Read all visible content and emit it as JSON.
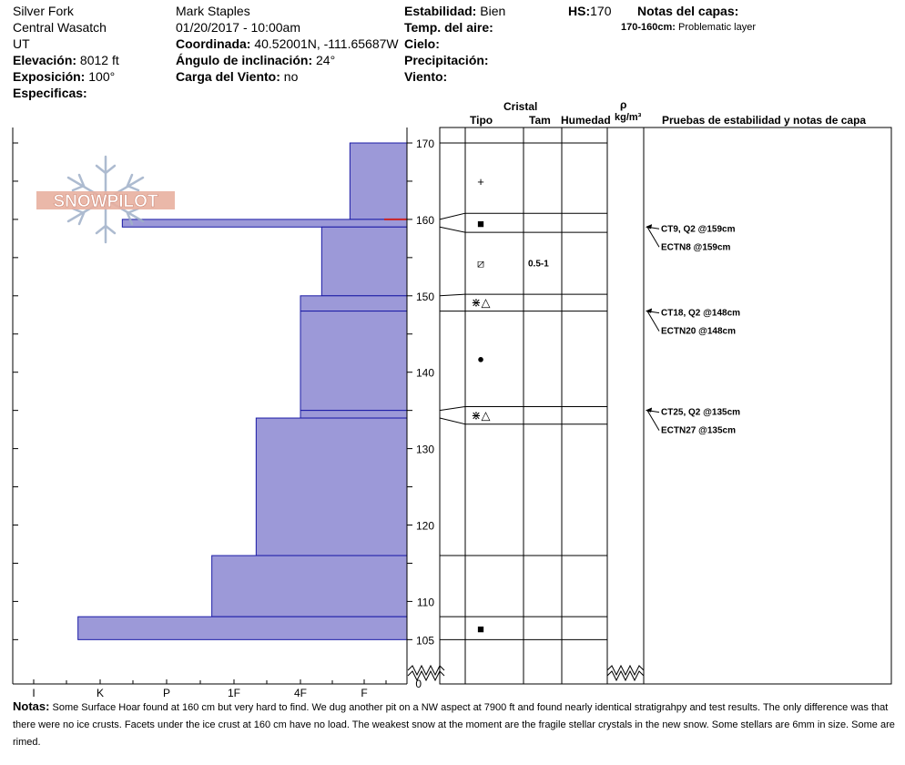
{
  "header": {
    "location": "Silver Fork",
    "range": "Central Wasatch",
    "state": "UT",
    "elevation_label": "Elevación:",
    "elevation_value": "8012 ft",
    "aspect_label": "Exposición:",
    "aspect_value": "100°",
    "specifics_label": "Especificas:",
    "observer": "Mark Staples",
    "datetime": "01/20/2017 - 10:00am",
    "coord_label": "Coordinada:",
    "coord_value": "40.52001N, -111.65687W",
    "slope_label": "Ángulo de inclinación:",
    "slope_value": "24°",
    "wind_load_label": "Carga del Viento:",
    "wind_load_value": "no",
    "stability_label": "Estabilidad:",
    "stability_value": "Bien",
    "air_temp_label": "Temp. del aire:",
    "sky_label": "Cielo:",
    "precip_label": "Precipitación:",
    "wind_label": "Viento:",
    "hs_label": "HS:",
    "hs_value": "170",
    "layer_notes_label": "Notas del capas:",
    "layer_note_range": "170-160cm:",
    "layer_note_text": "Problematic layer"
  },
  "columns": {
    "cristal": "Cristal",
    "tipo": "Tipo",
    "tam": "Tam",
    "humedad": "Humedad",
    "rho": "ρ",
    "density_unit": "kg/m³",
    "tests_header": "Pruebas de estabilidad y notas de capa"
  },
  "logo_text": "SNOWPILOT",
  "notes": {
    "label": "Notas:",
    "text": "Some Surface Hoar found at 160 cm but very hard to find. We dug another pit on a NW aspect at 7900 ft and found nearly identical stratigrahpy and test results. The only difference was that there were no ice crusts. Facets under the ice crust at 160 cm have no load. The weakest snow at the moment are the fragile stellar crystals in the new snow. Some stellars are 6mm in size. Some are rimed."
  },
  "chart_data": {
    "type": "snow-profile",
    "hardness_axis": [
      "I",
      "K",
      "P",
      "1F",
      "4F",
      "F"
    ],
    "height_ticks": [
      170,
      160,
      150,
      140,
      130,
      120,
      110,
      105,
      0
    ],
    "height_range_cm": [
      101,
      172
    ],
    "hardness_layers": [
      {
        "top": 170,
        "bottom": 160,
        "hardness": "F-"
      },
      {
        "top": 160,
        "bottom": 159,
        "hardness": "K+"
      },
      {
        "top": 159,
        "bottom": 150,
        "hardness": "4F+"
      },
      {
        "top": 150,
        "bottom": 148,
        "hardness": "4F"
      },
      {
        "top": 148,
        "bottom": 135,
        "hardness": "4F"
      },
      {
        "top": 135,
        "bottom": 134,
        "hardness": "4F"
      },
      {
        "top": 134,
        "bottom": 116,
        "hardness": "1F+"
      },
      {
        "top": 116,
        "bottom": 108,
        "hardness": "1F-"
      },
      {
        "top": 108,
        "bottom": 105,
        "hardness": "K-"
      }
    ],
    "crust_marker_height": 160,
    "layer_boundaries": [
      170,
      160.8,
      158.3,
      150.2,
      148,
      135.5,
      133.2,
      116,
      108,
      105
    ],
    "boundary_points": [
      [
        170,
        170
      ],
      [
        160,
        160.8
      ],
      [
        159,
        158.3
      ],
      [
        150,
        150.2
      ],
      [
        148,
        148
      ],
      [
        135,
        135.5
      ],
      [
        134,
        133.2
      ],
      [
        116,
        116
      ],
      [
        108,
        108
      ],
      [
        105,
        105
      ]
    ],
    "grain_symbols": [
      {
        "height": 165,
        "symbol": "+",
        "size": ""
      },
      {
        "height": 159.5,
        "symbol": "■",
        "size": ""
      },
      {
        "height": 154.3,
        "symbol": "⧄",
        "size": "0.5-1"
      },
      {
        "height": 149.2,
        "symbol": "⋇△",
        "size": ""
      },
      {
        "height": 141.8,
        "symbol": "●",
        "size": ""
      },
      {
        "height": 134.4,
        "symbol": "⋇△",
        "size": ""
      },
      {
        "height": 106.5,
        "symbol": "■",
        "size": ""
      }
    ],
    "tests": [
      {
        "label": "CT9, Q2 @159cm",
        "height": 159
      },
      {
        "label": "ECTN8 @159cm",
        "height": 159
      },
      {
        "label": "CT18, Q2 @148cm",
        "height": 148
      },
      {
        "label": "ECTN20 @148cm",
        "height": 148
      },
      {
        "label": "CT25, Q2 @135cm",
        "height": 135
      },
      {
        "label": "ECTN27 @135cm",
        "height": 135
      }
    ]
  }
}
